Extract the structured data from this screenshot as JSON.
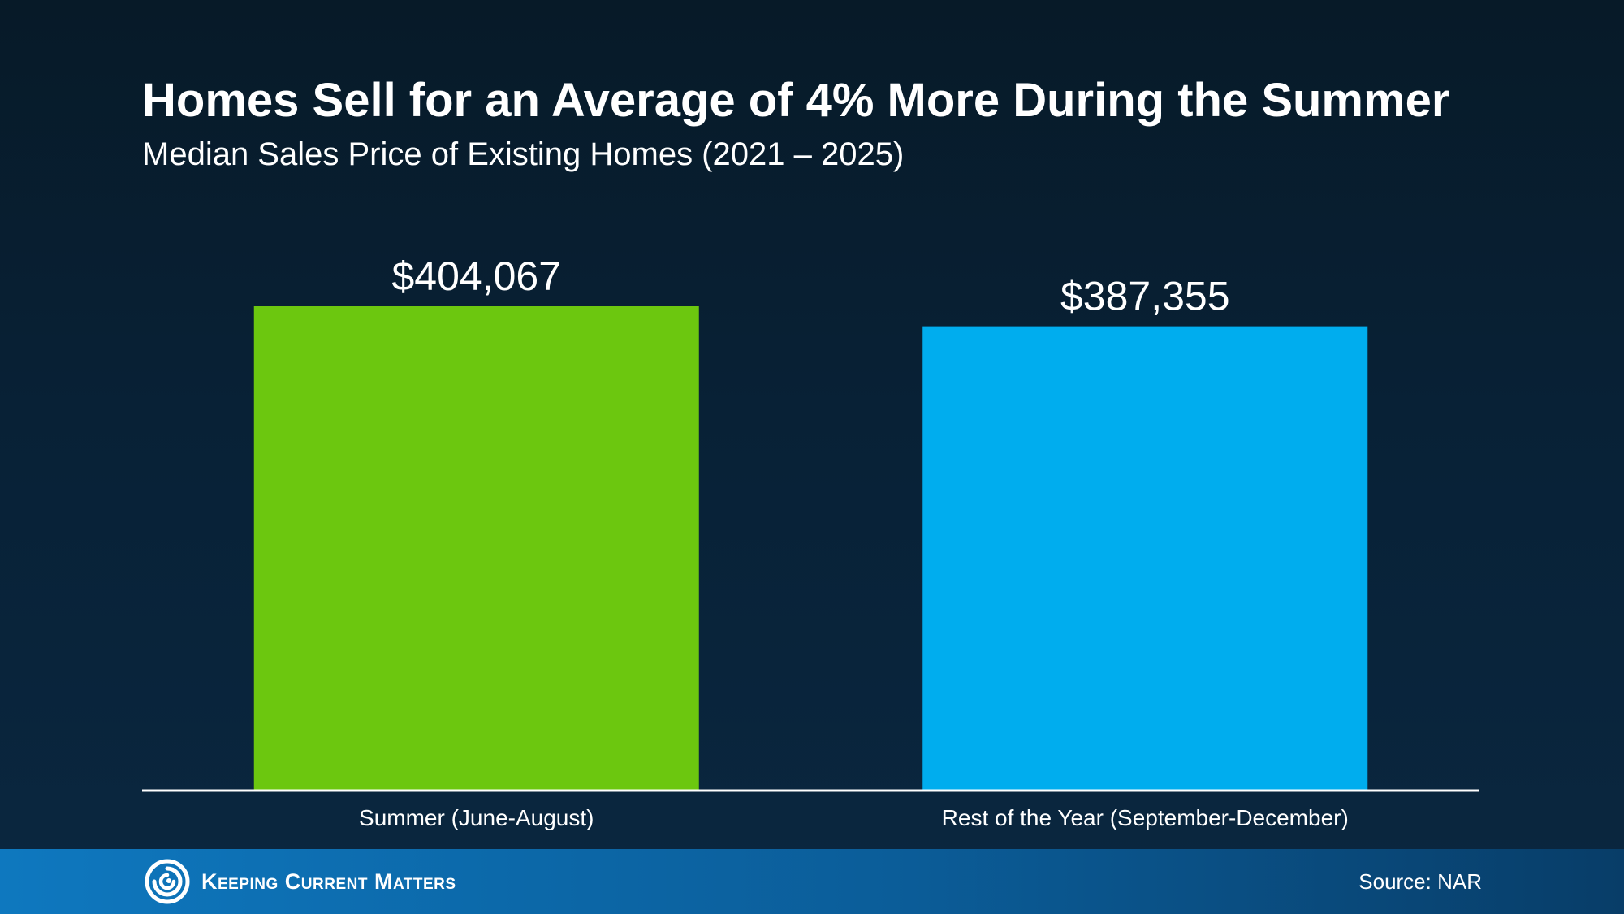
{
  "chart_data": {
    "type": "bar",
    "title": "Homes Sell for an Average of 4% More During the Summer",
    "subtitle": "Median Sales Price of Existing Homes (2021 – 2025)",
    "categories": [
      "Summer (June-August)",
      "Rest of the Year (September-December)"
    ],
    "values": [
      404067,
      387355
    ],
    "value_labels": [
      "$404,067",
      "$387,355"
    ],
    "colors": [
      "#6cc70f",
      "#00adee"
    ],
    "xlabel": "",
    "ylabel": "",
    "ylim": [
      0,
      404067
    ],
    "grid": false,
    "legend": "none"
  },
  "footer": {
    "brand": "Keeping Current Matters",
    "brand_icon": "swirl-logo-icon",
    "source": "Source: NAR"
  },
  "colors": {
    "background": "#082136",
    "footer_start": "#0e78bf",
    "footer_end": "#083d68",
    "axis_line": "#ffffff"
  }
}
